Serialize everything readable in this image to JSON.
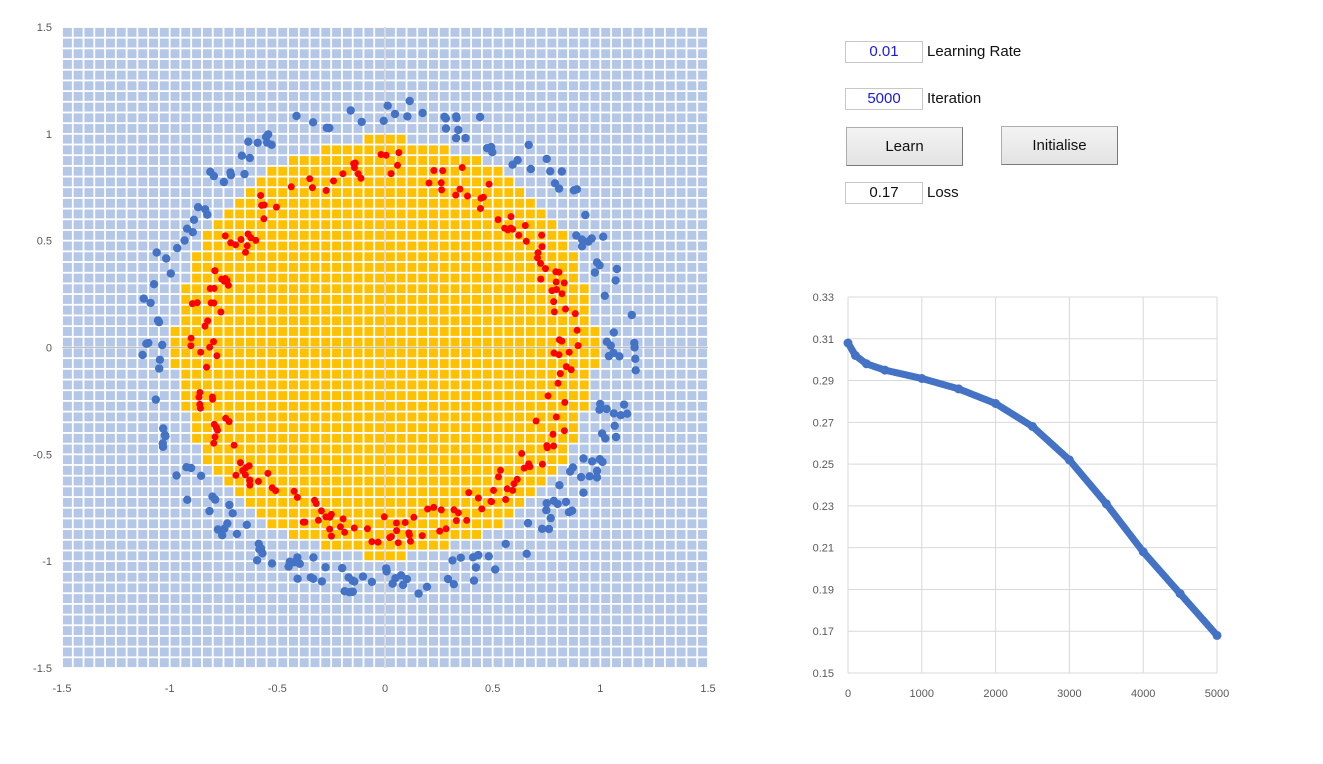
{
  "controls": {
    "learning_rate": {
      "value": "0.01",
      "label": "Learning Rate"
    },
    "iteration": {
      "value": "5000",
      "label": "Iteration"
    },
    "learn_button": "Learn",
    "initialise_button": "Initialise",
    "loss": {
      "value": "0.17",
      "label": "Loss"
    }
  },
  "colors": {
    "grid_cell": "#b4c7e7",
    "inside_region": "#ffc000",
    "outer_points": "#4472c4",
    "inner_points": "#ff0000",
    "loss_line": "#4472c4"
  },
  "chart_data": [
    {
      "type": "scatter",
      "title": "",
      "xlabel": "",
      "ylabel": "",
      "xlim": [
        -1.5,
        1.5
      ],
      "ylim": [
        -1.5,
        1.5
      ],
      "x_ticks": [
        "-1.5",
        "-1",
        "-0.5",
        "0",
        "0.5",
        "1",
        "1.5"
      ],
      "y_ticks": [
        "1.5",
        "1",
        "0.5",
        "0",
        "-0.5",
        "-1",
        "-1.5"
      ],
      "grid_resolution": 0.05,
      "decision_region": {
        "shape": "circle",
        "center": [
          0,
          0
        ],
        "radius": 0.98
      },
      "series": [
        {
          "class": "outer",
          "ring_radius": [
            1.03,
            1.17
          ],
          "count": 200,
          "color": "#4472c4"
        },
        {
          "class": "inner",
          "ring_radius": [
            0.78,
            0.92
          ],
          "count": 200,
          "color": "#ff0000"
        }
      ],
      "grid": true,
      "legend": "none"
    },
    {
      "type": "line",
      "title": "",
      "xlabel": "",
      "ylabel": "",
      "xlim": [
        0,
        5000
      ],
      "ylim": [
        0.15,
        0.33
      ],
      "x_ticks": [
        "0",
        "1000",
        "2000",
        "3000",
        "4000",
        "5000"
      ],
      "y_ticks": [
        "0.33",
        "0.31",
        "0.29",
        "0.27",
        "0.25",
        "0.23",
        "0.21",
        "0.19",
        "0.17",
        "0.15"
      ],
      "x": [
        0,
        100,
        250,
        500,
        1000,
        1500,
        2000,
        2500,
        3000,
        3500,
        4000,
        4500,
        5000
      ],
      "values": [
        0.308,
        0.302,
        0.298,
        0.295,
        0.291,
        0.286,
        0.279,
        0.268,
        0.252,
        0.231,
        0.208,
        0.188,
        0.168
      ],
      "grid": true,
      "legend": "none"
    }
  ]
}
